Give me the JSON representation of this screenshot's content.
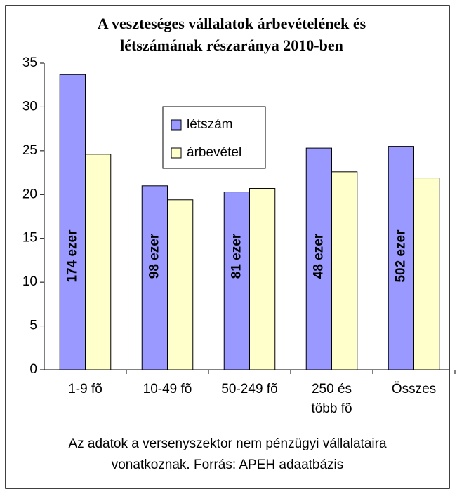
{
  "chart_data": {
    "type": "bar",
    "title": [
      "A veszteséges vállalatok árbevételének és",
      "létszámának részaránya 2010-ben"
    ],
    "categories": [
      "1-9 fõ",
      "10-49 fõ",
      "50-249 fõ",
      "250 és több fõ",
      "Összes"
    ],
    "series": [
      {
        "name": "létszám",
        "color": "#9999ff",
        "values": [
          33.7,
          21.0,
          20.3,
          25.3,
          25.5
        ]
      },
      {
        "name": "árbevétel",
        "color": "#ffffcc",
        "values": [
          24.6,
          19.4,
          20.7,
          22.6,
          21.9
        ]
      }
    ],
    "annotations": [
      "174 ezer",
      "98 ezer",
      "81 ezer",
      "48 ezer",
      "502 ezer"
    ],
    "ylim": [
      0,
      35
    ],
    "yticks": [
      0,
      5,
      10,
      15,
      20,
      25,
      30,
      35
    ],
    "footnote": [
      "Az adatok a versenyszektor nem pénzügyi vállalataira",
      "vonatkoznak. Forrás: APEH adaatbázis"
    ]
  }
}
